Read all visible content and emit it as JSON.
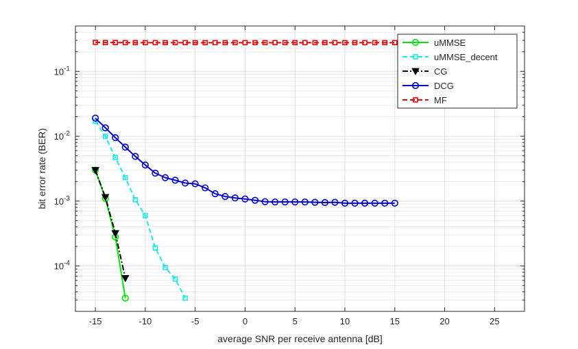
{
  "chart_data": {
    "type": "line",
    "xlabel": "average SNR per receive antenna [dB]",
    "ylabel": "bit error rate (BER)",
    "xlim": [
      -17,
      28
    ],
    "ylim": [
      2e-05,
      0.5
    ],
    "yscale": "log",
    "grid": true,
    "minor_grid": true,
    "legend_position": "top-right",
    "x_ticks": [
      {
        "value": -15,
        "label": "-15"
      },
      {
        "value": -10,
        "label": "-10"
      },
      {
        "value": -5,
        "label": "-5"
      },
      {
        "value": 0,
        "label": "0"
      },
      {
        "value": 5,
        "label": "5"
      },
      {
        "value": 10,
        "label": "10"
      },
      {
        "value": 15,
        "label": "15"
      },
      {
        "value": 20,
        "label": "20"
      },
      {
        "value": 25,
        "label": "25"
      }
    ],
    "y_ticks": [
      {
        "value": 0.1,
        "base": "10",
        "exp": "-1"
      },
      {
        "value": 0.01,
        "base": "10",
        "exp": "-2"
      },
      {
        "value": 0.001,
        "base": "10",
        "exp": "-3"
      },
      {
        "value": 0.0001,
        "base": "10",
        "exp": "-4"
      }
    ],
    "series": [
      {
        "name": "uMMSE",
        "color": "#00e600",
        "dash": "solid",
        "marker": "circle",
        "x": [
          -15,
          -14,
          -13,
          -12
        ],
        "y": [
          0.003,
          0.0011,
          0.00028,
          3.2e-05
        ]
      },
      {
        "name": "uMMSE_decent",
        "color": "#1de8e8",
        "dash": "dashed",
        "marker": "square",
        "x": [
          -15,
          -14,
          -13,
          -12,
          -11,
          -10,
          -9,
          -8,
          -7,
          -6
        ],
        "y": [
          0.017,
          0.01,
          0.0047,
          0.0023,
          0.00105,
          0.0006,
          0.00019,
          9.5e-05,
          6.3e-05,
          3.2e-05
        ]
      },
      {
        "name": "CG",
        "color": "#000000",
        "dash": "dashdot",
        "marker": "triangle-down",
        "x": [
          -15,
          -14,
          -13,
          -12
        ],
        "y": [
          0.003,
          0.00115,
          0.00032,
          6.5e-05
        ]
      },
      {
        "name": "DCG",
        "color": "#0000cc",
        "dash": "solid",
        "marker": "circle",
        "x": [
          -15,
          -14,
          -13,
          -12,
          -11,
          -10,
          -9,
          -8,
          -7,
          -6,
          -5,
          -4,
          -3,
          -2,
          -1,
          0,
          1,
          2,
          3,
          4,
          5,
          6,
          7,
          8,
          9,
          10,
          11,
          12,
          13,
          14,
          15
        ],
        "y": [
          0.019,
          0.0135,
          0.0095,
          0.0068,
          0.0049,
          0.0036,
          0.0027,
          0.0023,
          0.0021,
          0.0019,
          0.00185,
          0.0016,
          0.0013,
          0.00118,
          0.00112,
          0.00108,
          0.00103,
          0.00098,
          0.00097,
          0.00097,
          0.00097,
          0.00097,
          0.00096,
          0.00095,
          0.00096,
          0.00093,
          0.00093,
          0.00093,
          0.00093,
          0.00093,
          0.00093
        ]
      },
      {
        "name": "MF",
        "color": "#e60000",
        "dash": "dashed",
        "marker": "square",
        "x": [
          -15,
          -14,
          -13,
          -12,
          -11,
          -10,
          -9,
          -8,
          -7,
          -6,
          -5,
          -4,
          -3,
          -2,
          -1,
          0,
          1,
          2,
          3,
          4,
          5,
          6,
          7,
          8,
          9,
          10,
          11,
          12,
          13,
          14,
          15
        ],
        "y": [
          0.28,
          0.278,
          0.278,
          0.277,
          0.277,
          0.277,
          0.277,
          0.277,
          0.277,
          0.277,
          0.277,
          0.277,
          0.277,
          0.277,
          0.277,
          0.277,
          0.277,
          0.277,
          0.277,
          0.277,
          0.277,
          0.277,
          0.277,
          0.277,
          0.277,
          0.277,
          0.277,
          0.277,
          0.277,
          0.277,
          0.277
        ]
      }
    ]
  }
}
